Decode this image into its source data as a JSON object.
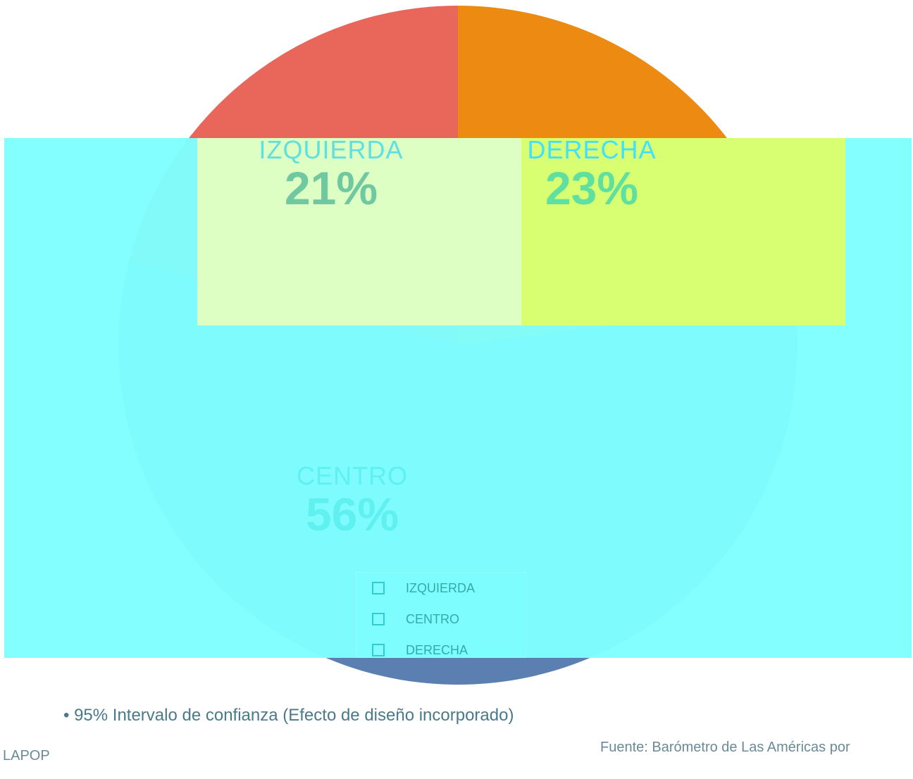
{
  "chart_data": {
    "type": "pie",
    "categories": [
      "IZQUIERDA",
      "DERECHA",
      "CENTRO"
    ],
    "values": [
      21,
      23,
      56
    ],
    "value_labels": [
      "21%",
      "23%",
      "56%"
    ],
    "colors": [
      "#e8675a",
      "#ec8a12",
      "#5b7fb0"
    ],
    "legend": [
      "IZQUIERDA",
      "CENTRO",
      "DERECHA"
    ],
    "legend_position": "bottom"
  },
  "footer": {
    "note": "• 95% Intervalo de confianza (Efecto de diseño incorporado)",
    "source": "Fuente: Barómetro de Las Américas por",
    "org": "LAPOP"
  }
}
